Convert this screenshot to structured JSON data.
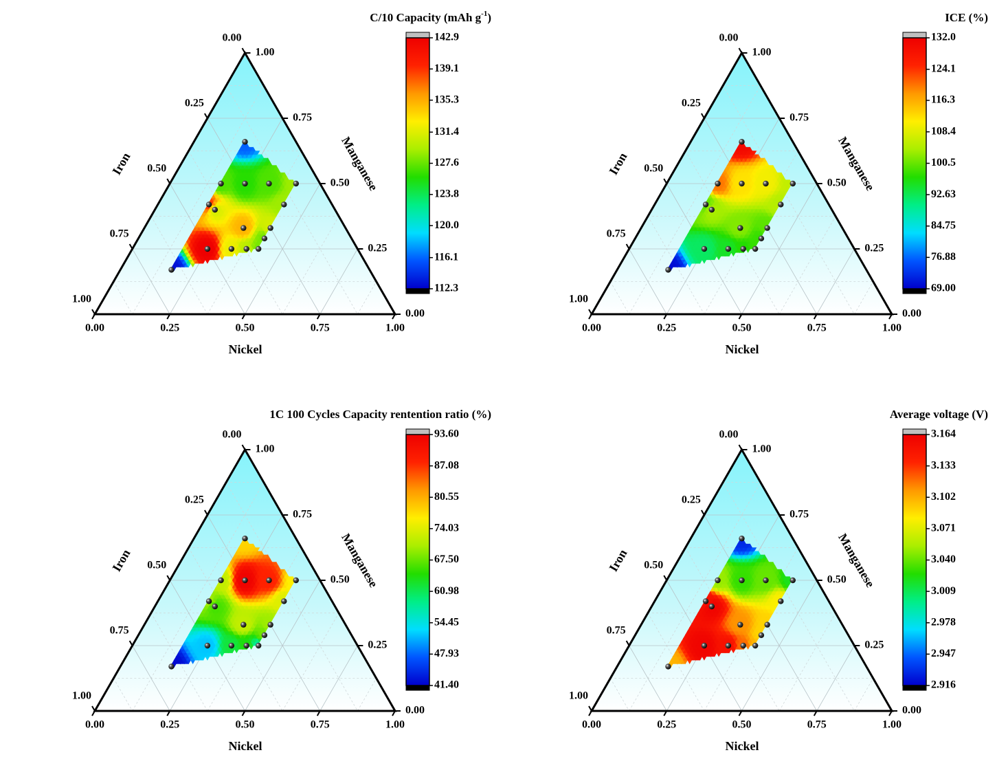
{
  "chart_data": [
    {
      "type": "ternary",
      "title": {
        "text": "C/10 Capacity (mAh g",
        "superscript": "-1",
        "suffix": ")"
      },
      "axes": {
        "bottom": "Nickel",
        "right": "Manganese",
        "left": "Iron"
      },
      "ticks": [
        {
          "value": 0,
          "label": "0.00"
        },
        0.25,
        {
          "value": 0.5,
          "label": "0.50"
        },
        0.75,
        {
          "value": 1,
          "label": "1.00"
        }
      ],
      "ni": [
        0.17,
        0.17,
        0.25,
        0.33,
        0.42,
        0.17,
        0.2,
        0.42,
        0.33,
        0.42,
        0.42,
        0.25,
        0.33,
        0.38,
        0.42,
        0.17
      ],
      "mn": [
        0.66,
        0.5,
        0.5,
        0.5,
        0.5,
        0.42,
        0.4,
        0.42,
        0.33,
        0.33,
        0.29,
        0.25,
        0.25,
        0.25,
        0.25,
        0.17
      ],
      "values": [
        116,
        127,
        126,
        127,
        129,
        139,
        131,
        129,
        135,
        131,
        128,
        142.9,
        132,
        130,
        128,
        113
      ],
      "clim": [
        112.3,
        142.9
      ],
      "colorbar_ticks": [
        142.9,
        139.1,
        135.3,
        131.4,
        127.6,
        123.8,
        {
          "value": 120,
          "label": "120.0"
        },
        116.1,
        112.3
      ],
      "colormap": [
        "#0000cc",
        "#0055ff",
        "#00ddff",
        "#00ee88",
        "#22dd00",
        "#aaee00",
        "#ffee00",
        "#ff9900",
        "#ff2200",
        "#ee0000"
      ]
    },
    {
      "type": "ternary",
      "title": "ICE (%)",
      "axes": {
        "bottom": "Nickel",
        "right": "Manganese",
        "left": "Iron"
      },
      "ticks": [
        {
          "value": 0,
          "label": "0.00"
        },
        0.25,
        {
          "value": 0.5,
          "label": "0.50"
        },
        0.75,
        {
          "value": 1,
          "label": "1.00"
        }
      ],
      "ni": [
        0.17,
        0.17,
        0.25,
        0.33,
        0.42,
        0.17,
        0.2,
        0.42,
        0.33,
        0.42,
        0.42,
        0.25,
        0.33,
        0.38,
        0.42,
        0.17
      ],
      "mn": [
        0.66,
        0.5,
        0.5,
        0.5,
        0.5,
        0.42,
        0.4,
        0.42,
        0.33,
        0.33,
        0.29,
        0.25,
        0.25,
        0.25,
        0.25,
        0.17
      ],
      "values": [
        130,
        120,
        112,
        110,
        106,
        100,
        104,
        105,
        102,
        100,
        98,
        92,
        95,
        97,
        98,
        70
      ],
      "clim": [
        69,
        132
      ],
      "colorbar_ticks": [
        {
          "value": 132,
          "label": "132.0"
        },
        124.1,
        116.3,
        108.4,
        100.5,
        92.63,
        84.75,
        76.88,
        {
          "value": 69,
          "label": "69.00"
        }
      ],
      "colormap": [
        "#0000cc",
        "#0055ff",
        "#00ddff",
        "#00ee88",
        "#22dd00",
        "#aaee00",
        "#ffee00",
        "#ff9900",
        "#ff2200",
        "#ee0000"
      ]
    },
    {
      "type": "ternary",
      "title": "1C 100 Cycles Capacity rentention ratio (%)",
      "axes": {
        "bottom": "Nickel",
        "right": "Manganese",
        "left": "Iron"
      },
      "ticks": [
        {
          "value": 0,
          "label": "0.00"
        },
        0.25,
        {
          "value": 0.5,
          "label": "0.50"
        },
        0.75,
        {
          "value": 1,
          "label": "1.00"
        }
      ],
      "ni": [
        0.17,
        0.17,
        0.25,
        0.33,
        0.42,
        0.17,
        0.2,
        0.42,
        0.33,
        0.42,
        0.42,
        0.25,
        0.33,
        0.38,
        0.42,
        0.17
      ],
      "mn": [
        0.66,
        0.5,
        0.5,
        0.5,
        0.5,
        0.42,
        0.4,
        0.42,
        0.33,
        0.33,
        0.29,
        0.25,
        0.25,
        0.25,
        0.25,
        0.17
      ],
      "values": [
        78,
        72,
        93,
        88,
        76,
        70,
        66,
        74,
        72,
        70,
        68,
        52,
        62,
        64,
        58,
        42
      ],
      "clim": [
        41.4,
        93.6
      ],
      "colorbar_ticks": [
        {
          "value": 93.6,
          "label": "93.60"
        },
        87.08,
        80.55,
        74.03,
        {
          "value": 67.5,
          "label": "67.50"
        },
        60.98,
        54.45,
        47.93,
        {
          "value": 41.4,
          "label": "41.40"
        }
      ],
      "colormap": [
        "#0000cc",
        "#0055ff",
        "#00ddff",
        "#00ee88",
        "#22dd00",
        "#aaee00",
        "#ffee00",
        "#ff9900",
        "#ff2200",
        "#ee0000"
      ]
    },
    {
      "type": "ternary",
      "title": "Average voltage (V)",
      "axes": {
        "bottom": "Nickel",
        "right": "Manganese",
        "left": "Iron"
      },
      "ticks": [
        {
          "value": 0,
          "label": "0.00"
        },
        0.25,
        {
          "value": 0.5,
          "label": "0.50"
        },
        0.75,
        {
          "value": 1,
          "label": "1.00"
        }
      ],
      "ni": [
        0.17,
        0.17,
        0.25,
        0.33,
        0.42,
        0.17,
        0.2,
        0.42,
        0.33,
        0.42,
        0.42,
        0.25,
        0.33,
        0.38,
        0.42,
        0.17
      ],
      "mn": [
        0.66,
        0.5,
        0.5,
        0.5,
        0.5,
        0.42,
        0.4,
        0.42,
        0.33,
        0.33,
        0.29,
        0.25,
        0.25,
        0.25,
        0.25,
        0.17
      ],
      "values": [
        2.93,
        3.05,
        3.03,
        3.04,
        3.02,
        3.15,
        3.16,
        3.08,
        3.11,
        3.09,
        3.09,
        3.16,
        3.15,
        3.12,
        3.1,
        3.1
      ],
      "clim": [
        2.916,
        3.164
      ],
      "colorbar_ticks": [
        3.164,
        3.133,
        3.102,
        3.071,
        {
          "value": 3.04,
          "label": "3.040"
        },
        3.009,
        2.978,
        2.947,
        2.916
      ],
      "colormap": [
        "#0000cc",
        "#0055ff",
        "#00ddff",
        "#00ee88",
        "#22dd00",
        "#aaee00",
        "#ffee00",
        "#ff9900",
        "#ff2200",
        "#ee0000"
      ]
    }
  ]
}
